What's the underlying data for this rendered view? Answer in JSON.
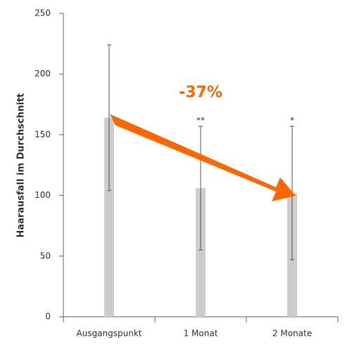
{
  "chart_data": {
    "type": "bar",
    "y_label": "Haarausfall im Durchschnitt",
    "categories": [
      "Ausgangspunkt",
      "1 Monat",
      "2 Monate"
    ],
    "values": [
      164,
      106,
      102
    ],
    "errors": [
      60,
      51,
      55
    ],
    "significance": [
      null,
      "**",
      "*"
    ],
    "annotation": "-37%",
    "color": "#cccccc",
    "ylim": [
      0,
      250
    ],
    "yticks": [
      0,
      50,
      100,
      150,
      200,
      250
    ],
    "grid": false
  }
}
